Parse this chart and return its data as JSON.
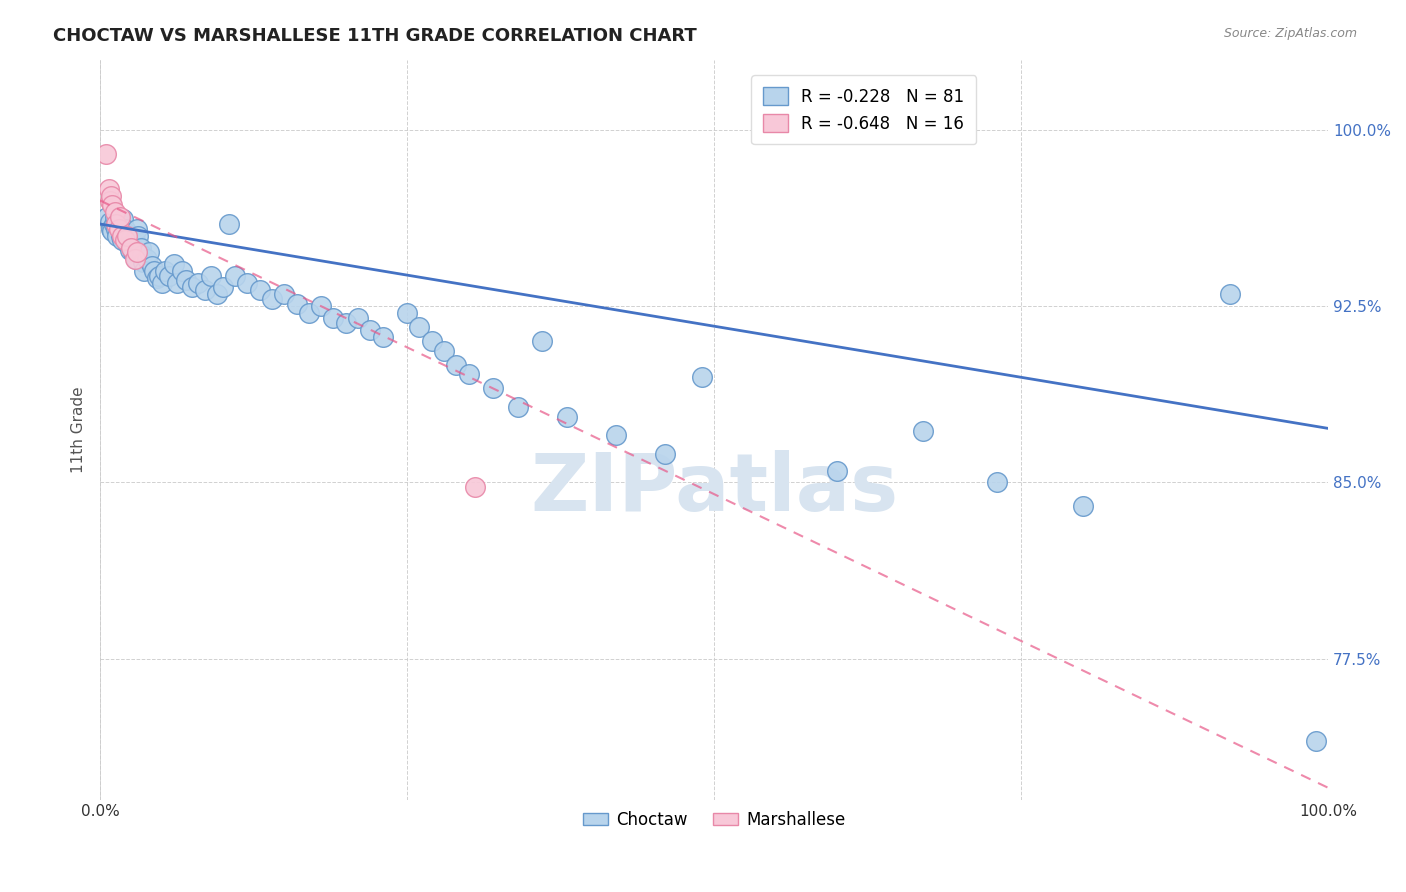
{
  "title": "CHOCTAW VS MARSHALLESE 11TH GRADE CORRELATION CHART",
  "source": "Source: ZipAtlas.com",
  "ylabel": "11th Grade",
  "ytick_labels": [
    "100.0%",
    "92.5%",
    "85.0%",
    "77.5%"
  ],
  "ytick_vals": [
    1.0,
    0.925,
    0.85,
    0.775
  ],
  "xmin": 0.0,
  "xmax": 1.0,
  "ymin": 0.715,
  "ymax": 1.03,
  "choctaw_R": -0.228,
  "choctaw_N": 81,
  "marshallese_R": -0.648,
  "marshallese_N": 16,
  "choctaw_color": "#b8d4ec",
  "choctaw_edge": "#6699cc",
  "marshallese_color": "#f8c8d8",
  "marshallese_edge": "#e888a8",
  "trend_blue": "#4472c4",
  "trend_pink": "#e85888",
  "watermark_color": "#d8e4f0",
  "background_color": "#ffffff",
  "grid_color": "#cccccc",
  "blue_line_x0": 0.0,
  "blue_line_y0": 0.96,
  "blue_line_x1": 1.0,
  "blue_line_y1": 0.873,
  "pink_line_x0": 0.0,
  "pink_line_y0": 0.97,
  "pink_line_x1": 1.0,
  "pink_line_y1": 0.72,
  "choctaw_points_x": [
    0.006,
    0.008,
    0.009,
    0.01,
    0.011,
    0.012,
    0.013,
    0.014,
    0.015,
    0.016,
    0.017,
    0.018,
    0.019,
    0.02,
    0.021,
    0.022,
    0.023,
    0.024,
    0.025,
    0.026,
    0.027,
    0.028,
    0.029,
    0.03,
    0.031,
    0.033,
    0.034,
    0.035,
    0.036,
    0.038,
    0.04,
    0.042,
    0.044,
    0.046,
    0.048,
    0.05,
    0.053,
    0.056,
    0.06,
    0.063,
    0.067,
    0.07,
    0.075,
    0.08,
    0.085,
    0.09,
    0.095,
    0.1,
    0.105,
    0.11,
    0.12,
    0.13,
    0.14,
    0.15,
    0.16,
    0.17,
    0.18,
    0.19,
    0.2,
    0.21,
    0.22,
    0.23,
    0.25,
    0.26,
    0.27,
    0.28,
    0.29,
    0.3,
    0.32,
    0.34,
    0.36,
    0.38,
    0.42,
    0.46,
    0.49,
    0.6,
    0.67,
    0.73,
    0.8,
    0.92,
    0.99
  ],
  "choctaw_points_y": [
    0.963,
    0.961,
    0.958,
    0.957,
    0.96,
    0.963,
    0.958,
    0.955,
    0.962,
    0.96,
    0.955,
    0.953,
    0.962,
    0.958,
    0.956,
    0.952,
    0.955,
    0.949,
    0.954,
    0.95,
    0.948,
    0.953,
    0.945,
    0.958,
    0.955,
    0.95,
    0.947,
    0.944,
    0.94,
    0.945,
    0.948,
    0.942,
    0.94,
    0.937,
    0.938,
    0.935,
    0.94,
    0.938,
    0.943,
    0.935,
    0.94,
    0.936,
    0.933,
    0.935,
    0.932,
    0.938,
    0.93,
    0.933,
    0.96,
    0.938,
    0.935,
    0.932,
    0.928,
    0.93,
    0.926,
    0.922,
    0.925,
    0.92,
    0.918,
    0.92,
    0.915,
    0.912,
    0.922,
    0.916,
    0.91,
    0.906,
    0.9,
    0.896,
    0.89,
    0.882,
    0.91,
    0.878,
    0.87,
    0.862,
    0.895,
    0.855,
    0.872,
    0.85,
    0.84,
    0.93,
    0.74
  ],
  "marshallese_points_x": [
    0.005,
    0.007,
    0.008,
    0.009,
    0.01,
    0.012,
    0.013,
    0.015,
    0.016,
    0.018,
    0.02,
    0.022,
    0.025,
    0.028,
    0.03,
    0.305
  ],
  "marshallese_points_y": [
    0.99,
    0.975,
    0.97,
    0.972,
    0.968,
    0.965,
    0.96,
    0.958,
    0.963,
    0.955,
    0.953,
    0.955,
    0.95,
    0.945,
    0.948,
    0.848
  ]
}
